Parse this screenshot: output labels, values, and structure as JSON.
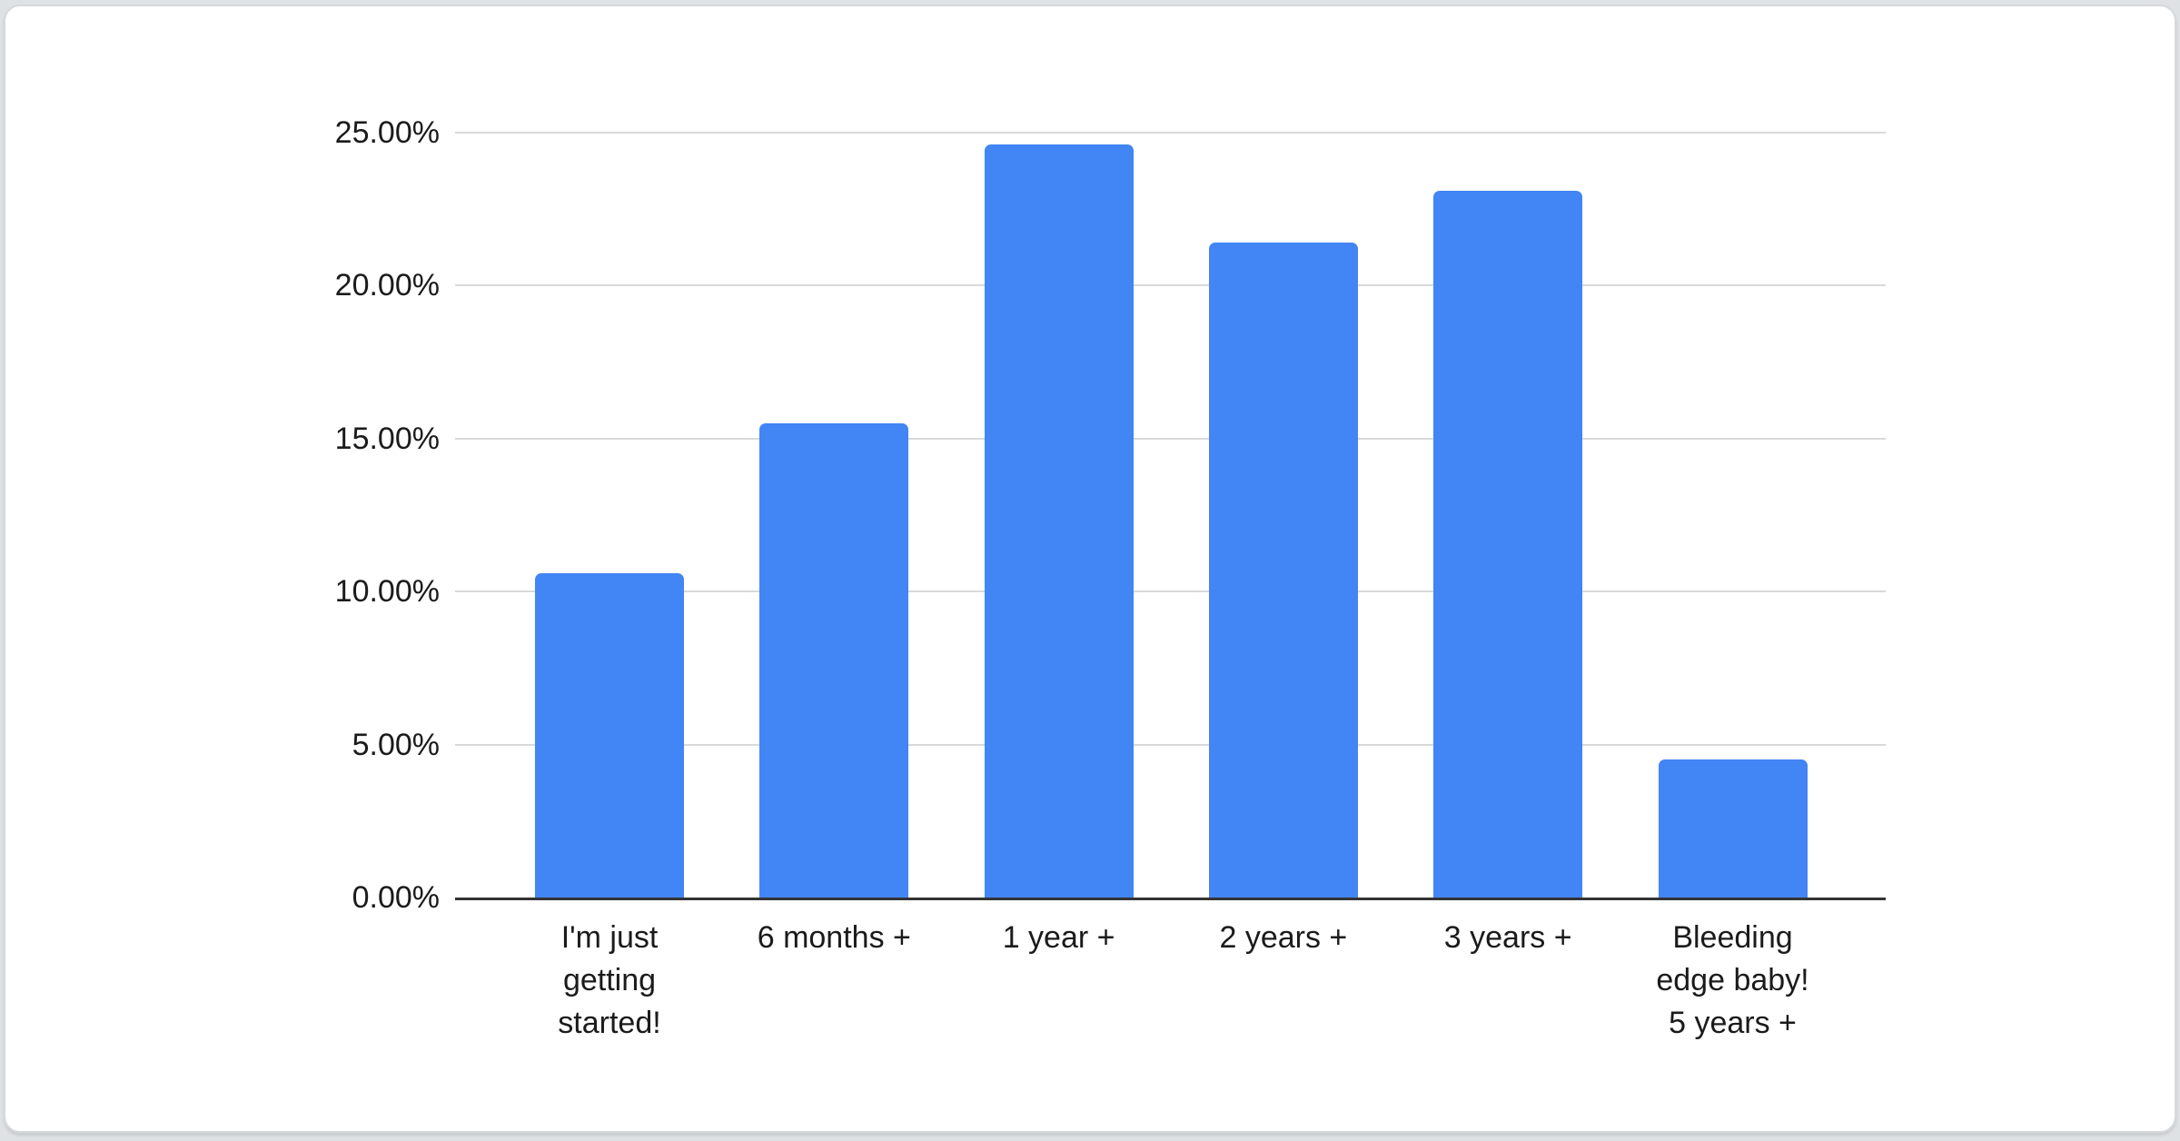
{
  "chart_data": {
    "type": "bar",
    "categories": [
      "I'm just getting started!",
      "6 months +",
      "1 year +",
      "2 years +",
      "3 years +",
      "Bleeding edge baby! 5 years +"
    ],
    "category_lines": [
      [
        "I'm just",
        "getting",
        "started!"
      ],
      [
        "6 months +"
      ],
      [
        "1 year +"
      ],
      [
        "2 years +"
      ],
      [
        "3 years +"
      ],
      [
        "Bleeding",
        "edge baby!",
        "5 years +"
      ]
    ],
    "values": [
      10.6,
      15.5,
      24.6,
      21.4,
      23.1,
      4.5
    ],
    "yticks": [
      {
        "value": 0,
        "label": "0.00%"
      },
      {
        "value": 5,
        "label": "5.00%"
      },
      {
        "value": 10,
        "label": "10.00%"
      },
      {
        "value": 15,
        "label": "15.00%"
      },
      {
        "value": 20,
        "label": "20.00%"
      },
      {
        "value": 25,
        "label": "25.00%"
      }
    ],
    "ylim": [
      0,
      25
    ],
    "xlabel": "",
    "ylabel": "",
    "grid": true,
    "legend": "none",
    "bar_color": "#4285f4",
    "gridline_color": "#d9d9d9",
    "axis_color": "#333333",
    "text_color": "#1b1b1b"
  }
}
